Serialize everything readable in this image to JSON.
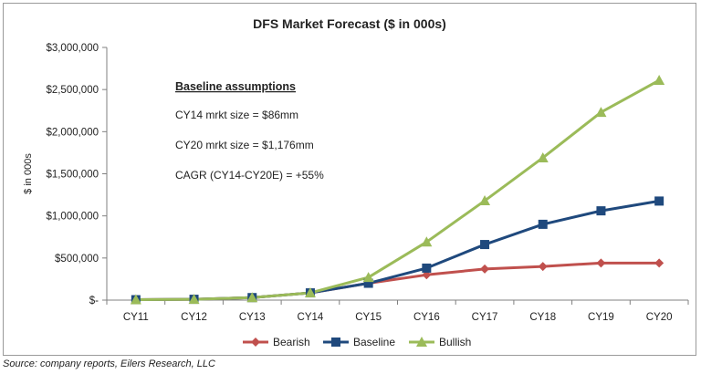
{
  "chart_data": {
    "type": "line",
    "title": "DFS Market Forecast ($ in 000s)",
    "xlabel": "",
    "ylabel": "$ in 000s",
    "categories": [
      "CY11",
      "CY12",
      "CY13",
      "CY14",
      "CY15",
      "CY16",
      "CY17",
      "CY18",
      "CY19",
      "CY20"
    ],
    "ylim": [
      0,
      3000000
    ],
    "yticks": [
      0,
      500000,
      1000000,
      1500000,
      2000000,
      2500000,
      3000000
    ],
    "ytick_labels": [
      "$-",
      "$500,000",
      "$1,000,000",
      "$1,500,000",
      "$2,000,000",
      "$2,500,000",
      "$3,000,000"
    ],
    "grid": false,
    "legend_position": "bottom",
    "series": [
      {
        "name": "Bearish",
        "color": "#c0504d",
        "marker": "diamond",
        "values": [
          5000,
          10000,
          30000,
          86000,
          200000,
          300000,
          370000,
          400000,
          440000,
          440000
        ]
      },
      {
        "name": "Baseline",
        "color": "#1f497d",
        "marker": "square",
        "values": [
          5000,
          10000,
          30000,
          86000,
          200000,
          380000,
          660000,
          900000,
          1060000,
          1176000
        ]
      },
      {
        "name": "Bullish",
        "color": "#9bbb59",
        "marker": "triangle",
        "values": [
          5000,
          10000,
          30000,
          86000,
          270000,
          690000,
          1180000,
          1690000,
          2230000,
          2610000
        ]
      }
    ],
    "annotations": {
      "heading": "Baseline assumptions",
      "lines": [
        "CY14 mrkt size = $86mm",
        "CY20 mrkt size = $1,176mm",
        "CAGR (CY14-CY20E)  = +55%"
      ]
    }
  },
  "source": "Source: company reports, Eilers Research, LLC"
}
